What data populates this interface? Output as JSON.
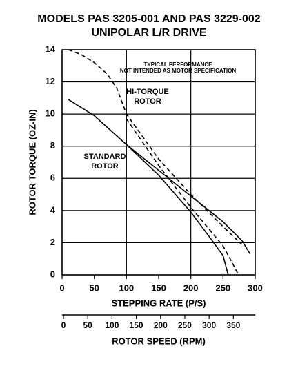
{
  "chart_data": {
    "type": "line",
    "title": "MODELS PAS 3205-001 AND PAS 3229-002",
    "subtitle": "UNIPOLAR L/R DRIVE",
    "xlabel": "STEPPING RATE (P/S)",
    "ylabel": "ROTOR TORQUE (OZ-IN)",
    "x2label": "ROTOR SPEED (RPM)",
    "annotations": [
      "TYPICAL PERFORMANCE",
      "NOT INTENDED AS MOTOR SPECIFICATION",
      "HI-TORQUE",
      "ROTOR",
      "STANDARD",
      "ROTOR"
    ],
    "xlim": [
      0,
      300
    ],
    "xticks": [
      0,
      50,
      100,
      150,
      200,
      250,
      300
    ],
    "ylim": [
      0,
      14
    ],
    "yticks": [
      0,
      2,
      4,
      6,
      8,
      10,
      12,
      14
    ],
    "x2lim": [
      0,
      395
    ],
    "x2ticks": [
      0,
      50,
      100,
      150,
      200,
      250,
      300,
      350
    ],
    "grid": true,
    "series": [
      {
        "color": "#000000",
        "dash": false,
        "x": [
          10,
          50,
          100,
          150,
          200,
          250,
          280,
          292
        ],
        "values": [
          10.9,
          9.9,
          8.1,
          6.5,
          4.9,
          3.3,
          2.1,
          1.3
        ]
      },
      {
        "color": "#000000",
        "dash": false,
        "x": [
          100,
          150,
          200,
          230,
          250,
          258
        ],
        "values": [
          8.1,
          6.2,
          3.9,
          2.3,
          1.2,
          0
        ]
      },
      {
        "color": "#000000",
        "dash": true,
        "x": [
          10,
          30,
          50,
          70,
          85,
          100,
          150,
          200,
          250,
          279
        ],
        "values": [
          14,
          13.7,
          13.2,
          12.5,
          11.6,
          10,
          7.2,
          5,
          3,
          1.9
        ]
      },
      {
        "color": "#000000",
        "dash": true,
        "x": [
          100,
          150,
          200,
          250,
          265,
          274
        ],
        "values": [
          9.7,
          6.8,
          4.2,
          1.8,
          0.7,
          0
        ]
      }
    ]
  }
}
